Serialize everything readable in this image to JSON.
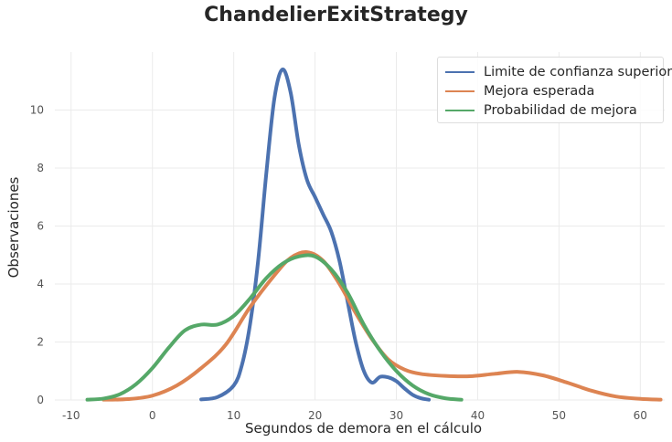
{
  "chart_data": {
    "type": "line",
    "title": "ChandelierExitStrategy",
    "xlabel": "Segundos de demora en el cálculo",
    "ylabel": "Observaciones",
    "xlim": [
      -12,
      63
    ],
    "ylim": [
      0,
      12
    ],
    "xticks": [
      -10,
      0,
      10,
      20,
      30,
      40,
      50,
      60
    ],
    "yticks": [
      0,
      2,
      4,
      6,
      8,
      10
    ],
    "grid": true,
    "legend_position": "top-right",
    "series": [
      {
        "name": "Limite de confianza superior",
        "color": "#4c72b0",
        "points": [
          [
            6,
            0.02
          ],
          [
            8,
            0.1
          ],
          [
            10,
            0.5
          ],
          [
            11,
            1.2
          ],
          [
            12,
            2.6
          ],
          [
            13,
            4.8
          ],
          [
            14,
            7.8
          ],
          [
            15,
            10.4
          ],
          [
            16,
            11.4
          ],
          [
            17,
            10.6
          ],
          [
            18,
            8.8
          ],
          [
            19,
            7.6
          ],
          [
            20,
            7.0
          ],
          [
            21,
            6.4
          ],
          [
            22,
            5.8
          ],
          [
            23,
            4.8
          ],
          [
            24,
            3.4
          ],
          [
            25,
            2.0
          ],
          [
            26,
            1.0
          ],
          [
            27,
            0.6
          ],
          [
            28,
            0.8
          ],
          [
            29,
            0.78
          ],
          [
            30,
            0.65
          ],
          [
            31,
            0.4
          ],
          [
            32,
            0.18
          ],
          [
            33,
            0.06
          ],
          [
            34,
            0.01
          ]
        ]
      },
      {
        "name": "Mejora esperada",
        "color": "#dd8452",
        "points": [
          [
            -6,
            0.01
          ],
          [
            -3,
            0.03
          ],
          [
            0,
            0.15
          ],
          [
            3,
            0.5
          ],
          [
            6,
            1.1
          ],
          [
            9,
            1.9
          ],
          [
            12,
            3.2
          ],
          [
            15,
            4.3
          ],
          [
            17,
            4.9
          ],
          [
            19,
            5.1
          ],
          [
            21,
            4.8
          ],
          [
            23,
            4.0
          ],
          [
            25,
            3.0
          ],
          [
            27,
            2.1
          ],
          [
            29,
            1.4
          ],
          [
            31,
            1.05
          ],
          [
            33,
            0.9
          ],
          [
            36,
            0.83
          ],
          [
            39,
            0.82
          ],
          [
            42,
            0.9
          ],
          [
            45,
            0.97
          ],
          [
            48,
            0.85
          ],
          [
            51,
            0.6
          ],
          [
            54,
            0.32
          ],
          [
            57,
            0.12
          ],
          [
            60,
            0.04
          ],
          [
            62.5,
            0.01
          ]
        ]
      },
      {
        "name": "Probabilidad de mejora",
        "color": "#55a868",
        "points": [
          [
            -8,
            0.01
          ],
          [
            -6,
            0.05
          ],
          [
            -4,
            0.2
          ],
          [
            -2,
            0.55
          ],
          [
            0,
            1.1
          ],
          [
            2,
            1.8
          ],
          [
            4,
            2.4
          ],
          [
            6,
            2.6
          ],
          [
            8,
            2.6
          ],
          [
            10,
            2.9
          ],
          [
            12,
            3.5
          ],
          [
            14,
            4.2
          ],
          [
            16,
            4.7
          ],
          [
            18,
            4.95
          ],
          [
            20,
            4.95
          ],
          [
            22,
            4.5
          ],
          [
            24,
            3.7
          ],
          [
            26,
            2.6
          ],
          [
            28,
            1.7
          ],
          [
            30,
            1.0
          ],
          [
            32,
            0.5
          ],
          [
            34,
            0.2
          ],
          [
            36,
            0.06
          ],
          [
            38,
            0.01
          ]
        ]
      }
    ]
  }
}
